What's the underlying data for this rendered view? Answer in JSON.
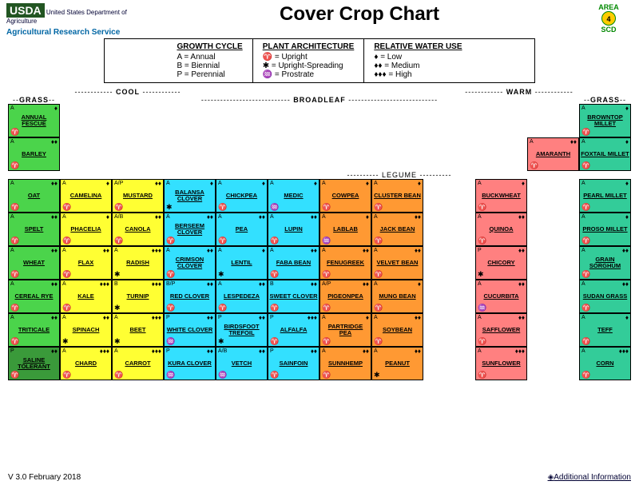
{
  "title": "Cover Crop Chart",
  "usda_text": "United States Department of Agriculture",
  "usda_label": "USDA",
  "ars_label": "Agricultural Research Service",
  "area_label": "AREA",
  "area_num": "4",
  "area_sub": "SCD",
  "legend": {
    "growth": {
      "title": "GROWTH CYCLE",
      "rows": [
        "A  = Annual",
        "B  = Biennial",
        "P  = Perennial"
      ]
    },
    "arch": {
      "title": "PLANT ARCHITECTURE",
      "rows": [
        "♈ = Upright",
        "✱ = Upright-Spreading",
        "♒ = Prostrate"
      ]
    },
    "water": {
      "title": "RELATIVE WATER USE",
      "rows": [
        "♦ = Low",
        "♦♦ = Medium",
        "♦♦♦ = High"
      ]
    }
  },
  "season_labels": {
    "cool": "COOL",
    "warm": "WARM",
    "grass": "GRASS",
    "broadleaf": "BROADLEAF",
    "legume": "LEGUME"
  },
  "colors": {
    "green": "#4bd44b",
    "darkgreen": "#3a9a3a",
    "yellow": "#ffff33",
    "cyan": "#33e0ff",
    "orange": "#ff9933",
    "pink": "#ff8080",
    "teal": "#33cc99"
  },
  "arch_map": {
    "U": "♈",
    "S": "✱",
    "P": "♒"
  },
  "rows": [
    [
      {
        "n": "ANNUAL FESCUE",
        "c": "green",
        "cy": "A",
        "a": "U",
        "w": 1
      },
      null,
      null,
      null,
      null,
      null,
      null,
      null,
      null,
      null,
      null,
      {
        "n": "BROWNTOP MILLET",
        "c": "teal",
        "cy": "A",
        "a": "U",
        "w": 1
      }
    ],
    [
      {
        "n": "BARLEY",
        "c": "green",
        "cy": "A",
        "a": "U",
        "w": 2
      },
      null,
      null,
      null,
      null,
      null,
      null,
      null,
      null,
      null,
      {
        "n": "AMARANTH",
        "c": "pink",
        "cy": "A",
        "a": "U",
        "w": 2
      },
      {
        "n": "FOXTAIL MILLET",
        "c": "teal",
        "cy": "A",
        "a": "U",
        "w": 1
      }
    ],
    [
      {
        "n": "OAT",
        "c": "green",
        "cy": "A",
        "a": "U",
        "w": 2
      },
      {
        "n": "CAMELINA",
        "c": "yellow",
        "cy": "A",
        "a": "U",
        "w": 1
      },
      {
        "n": "MUSTARD",
        "c": "yellow",
        "cy": "A/P",
        "a": "U",
        "w": 2
      },
      {
        "n": "BALANSA CLOVER",
        "c": "cyan",
        "cy": "A",
        "a": "S",
        "w": 1
      },
      {
        "n": "CHICKPEA",
        "c": "cyan",
        "cy": "A",
        "a": "U",
        "w": 1
      },
      {
        "n": "MEDIC",
        "c": "cyan",
        "cy": "A",
        "a": "P",
        "w": 1
      },
      {
        "n": "COWPEA",
        "c": "orange",
        "cy": "A",
        "a": "U",
        "w": 1
      },
      {
        "n": "CLUSTER BEAN",
        "c": "orange",
        "cy": "A",
        "a": "U",
        "w": 1
      },
      null,
      {
        "n": "BUCKWHEAT",
        "c": "pink",
        "cy": "A",
        "a": "U",
        "w": 1
      },
      null,
      {
        "n": "PEARL MILLET",
        "c": "teal",
        "cy": "A",
        "a": "U",
        "w": 1
      }
    ],
    [
      {
        "n": "SPELT",
        "c": "green",
        "cy": "A",
        "a": "U",
        "w": 2
      },
      {
        "n": "PHACELIA",
        "c": "yellow",
        "cy": "A",
        "a": "U",
        "w": 1
      },
      {
        "n": "CANOLA",
        "c": "yellow",
        "cy": "A/B",
        "a": "U",
        "w": 2
      },
      {
        "n": "BERSEEM CLOVER",
        "c": "cyan",
        "cy": "A",
        "a": "U",
        "w": 2
      },
      {
        "n": "PEA",
        "c": "cyan",
        "cy": "A",
        "a": "U",
        "w": 2
      },
      {
        "n": "LUPIN",
        "c": "cyan",
        "cy": "A",
        "a": "U",
        "w": 2
      },
      {
        "n": "LABLAB",
        "c": "orange",
        "cy": "A",
        "a": "P",
        "w": 1
      },
      {
        "n": "JACK BEAN",
        "c": "orange",
        "cy": "A",
        "a": "U",
        "w": 2
      },
      null,
      {
        "n": "QUINOA",
        "c": "pink",
        "cy": "A",
        "a": "U",
        "w": 2
      },
      null,
      {
        "n": "PROSO MILLET",
        "c": "teal",
        "cy": "A",
        "a": "U",
        "w": 1
      }
    ],
    [
      {
        "n": "WHEAT",
        "c": "green",
        "cy": "A",
        "a": "U",
        "w": 2
      },
      {
        "n": "FLAX",
        "c": "yellow",
        "cy": "A",
        "a": "U",
        "w": 2
      },
      {
        "n": "RADISH",
        "c": "yellow",
        "cy": "A",
        "a": "S",
        "w": 3
      },
      {
        "n": "CRIMSON CLOVER",
        "c": "cyan",
        "cy": "A",
        "a": "U",
        "w": 2
      },
      {
        "n": "LENTIL",
        "c": "cyan",
        "cy": "A",
        "a": "S",
        "w": 1
      },
      {
        "n": "FABA BEAN",
        "c": "cyan",
        "cy": "A",
        "a": "U",
        "w": 2
      },
      {
        "n": "FENUGREEK",
        "c": "orange",
        "cy": "A",
        "a": "U",
        "w": 2
      },
      {
        "n": "VELVET BEAN",
        "c": "orange",
        "cy": "A",
        "a": "U",
        "w": 2
      },
      null,
      {
        "n": "CHICORY",
        "c": "pink",
        "cy": "P",
        "a": "S",
        "w": 2
      },
      null,
      {
        "n": "GRAIN SORGHUM",
        "c": "teal",
        "cy": "A",
        "a": "U",
        "w": 2
      }
    ],
    [
      {
        "n": "CEREAL RYE",
        "c": "green",
        "cy": "A",
        "a": "U",
        "w": 2
      },
      {
        "n": "KALE",
        "c": "yellow",
        "cy": "A",
        "a": "U",
        "w": 3
      },
      {
        "n": "TURNIP",
        "c": "yellow",
        "cy": "B",
        "a": "S",
        "w": 3
      },
      {
        "n": "RED CLOVER",
        "c": "cyan",
        "cy": "B/P",
        "a": "U",
        "w": 2
      },
      {
        "n": "LESPEDEZA",
        "c": "cyan",
        "cy": "A",
        "a": "U",
        "w": 2
      },
      {
        "n": "SWEET CLOVER",
        "c": "cyan",
        "cy": "B",
        "a": "U",
        "w": 2
      },
      {
        "n": "PIGEONPEA",
        "c": "orange",
        "cy": "A/P",
        "a": "U",
        "w": 2
      },
      {
        "n": "MUNG BEAN",
        "c": "orange",
        "cy": "A",
        "a": "U",
        "w": 1
      },
      null,
      {
        "n": "CUCURBITA",
        "c": "pink",
        "cy": "A",
        "a": "P",
        "w": 2
      },
      null,
      {
        "n": "SUDAN GRASS",
        "c": "teal",
        "cy": "A",
        "a": "U",
        "w": 2
      }
    ],
    [
      {
        "n": "TRITICALE",
        "c": "green",
        "cy": "A",
        "a": "U",
        "w": 2
      },
      {
        "n": "SPINACH",
        "c": "yellow",
        "cy": "A",
        "a": "S",
        "w": 2
      },
      {
        "n": "BEET",
        "c": "yellow",
        "cy": "A",
        "a": "S",
        "w": 3
      },
      {
        "n": "WHITE CLOVER",
        "c": "cyan",
        "cy": "P",
        "a": "P",
        "w": 2
      },
      {
        "n": "BIRDSFOOT TREFOIL",
        "c": "cyan",
        "cy": "P",
        "a": "S",
        "w": 2
      },
      {
        "n": "ALFALFA",
        "c": "cyan",
        "cy": "P",
        "a": "U",
        "w": 3
      },
      {
        "n": "PARTRIDGE PEA",
        "c": "orange",
        "cy": "A",
        "a": "U",
        "w": 1
      },
      {
        "n": "SOYBEAN",
        "c": "orange",
        "cy": "A",
        "a": "U",
        "w": 2
      },
      null,
      {
        "n": "SAFFLOWER",
        "c": "pink",
        "cy": "A",
        "a": "U",
        "w": 2
      },
      null,
      {
        "n": "TEFF",
        "c": "teal",
        "cy": "A",
        "a": "U",
        "w": 1
      }
    ],
    [
      {
        "n": "SALINE TOLERANT",
        "c": "darkgreen",
        "cy": "P",
        "a": "U",
        "w": 2
      },
      {
        "n": "CHARD",
        "c": "yellow",
        "cy": "A",
        "a": "U",
        "w": 3
      },
      {
        "n": "CARROT",
        "c": "yellow",
        "cy": "A",
        "a": "U",
        "w": 3
      },
      {
        "n": "KURA CLOVER",
        "c": "cyan",
        "cy": "P",
        "a": "P",
        "w": 2
      },
      {
        "n": "VETCH",
        "c": "cyan",
        "cy": "A/B",
        "a": "P",
        "w": 2
      },
      {
        "n": "SAINFOIN",
        "c": "cyan",
        "cy": "P",
        "a": "U",
        "w": 2
      },
      {
        "n": "SUNNHEMP",
        "c": "orange",
        "cy": "A",
        "a": "U",
        "w": 2
      },
      {
        "n": "PEANUT",
        "c": "orange",
        "cy": "A",
        "a": "S",
        "w": 2
      },
      null,
      {
        "n": "SUNFLOWER",
        "c": "pink",
        "cy": "A",
        "a": "U",
        "w": 3
      },
      null,
      {
        "n": "CORN",
        "c": "teal",
        "cy": "A",
        "a": "U",
        "w": 3
      }
    ]
  ],
  "footer": {
    "version": "V 3.0 February 2018",
    "link": "Additional Information"
  }
}
